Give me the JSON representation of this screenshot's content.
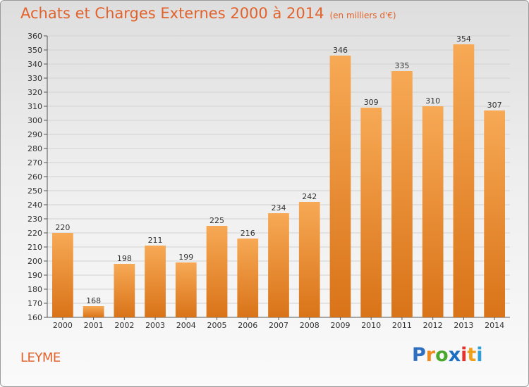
{
  "title": "Achats et Charges Externes 2000 à 2014",
  "subtitle": "(en milliers d'€)",
  "commune": "LEYME",
  "logo": {
    "letters": [
      "P",
      "r",
      "o",
      "x",
      "i",
      "t",
      "i"
    ],
    "colors": [
      "#2f6fc0",
      "#f08a1c",
      "#4aa82e",
      "#1d6fc4",
      "#e2342c",
      "#f0a11c",
      "#2f9fd8"
    ]
  },
  "colors": {
    "accent": "#e2622c",
    "bar_top": "#f7a955",
    "bar_bottom": "#d97318"
  },
  "chart_data": {
    "type": "bar",
    "categories": [
      "2000",
      "2001",
      "2002",
      "2003",
      "2004",
      "2005",
      "2006",
      "2007",
      "2008",
      "2009",
      "2010",
      "2011",
      "2012",
      "2013",
      "2014"
    ],
    "values": [
      220,
      168,
      198,
      211,
      199,
      225,
      216,
      234,
      242,
      346,
      309,
      335,
      310,
      354,
      307
    ],
    "ylim": [
      160,
      360
    ],
    "ytick_step": 10,
    "grid": true
  }
}
